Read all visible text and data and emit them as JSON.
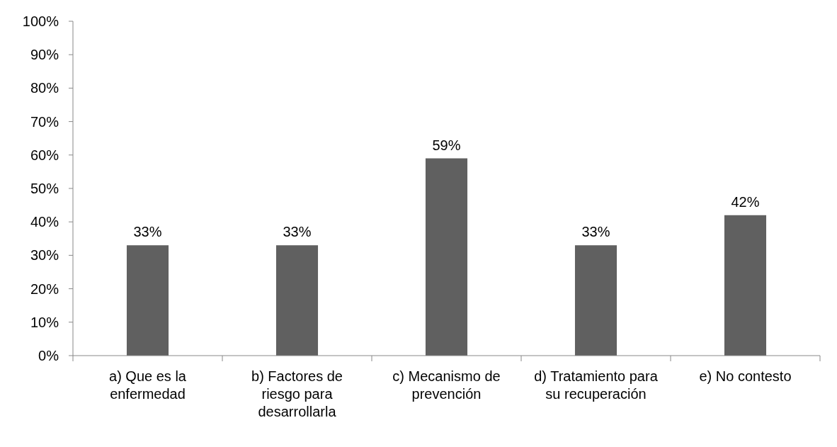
{
  "chart_data": {
    "type": "bar",
    "categories": [
      "a) Que es la enfermedad",
      "b) Factores de riesgo para desarrollarla",
      "c) Mecanismo de prevención",
      "d) Tratamiento para su recuperación",
      "e) No contesto"
    ],
    "values": [
      33,
      33,
      59,
      33,
      42
    ],
    "value_labels": [
      "33%",
      "33%",
      "59%",
      "33%",
      "42%"
    ],
    "color": "#606060",
    "ylim": [
      0,
      100
    ],
    "yticks": [
      {
        "value": 0,
        "label": "0%"
      },
      {
        "value": 10,
        "label": "10%"
      },
      {
        "value": 20,
        "label": "20%"
      },
      {
        "value": 30,
        "label": "30%"
      },
      {
        "value": 40,
        "label": "40%"
      },
      {
        "value": 50,
        "label": "50%"
      },
      {
        "value": 60,
        "label": "60%"
      },
      {
        "value": 70,
        "label": "70%"
      },
      {
        "value": 80,
        "label": "80%"
      },
      {
        "value": 90,
        "label": "90%"
      },
      {
        "value": 100,
        "label": "100%"
      }
    ],
    "grid": false
  }
}
